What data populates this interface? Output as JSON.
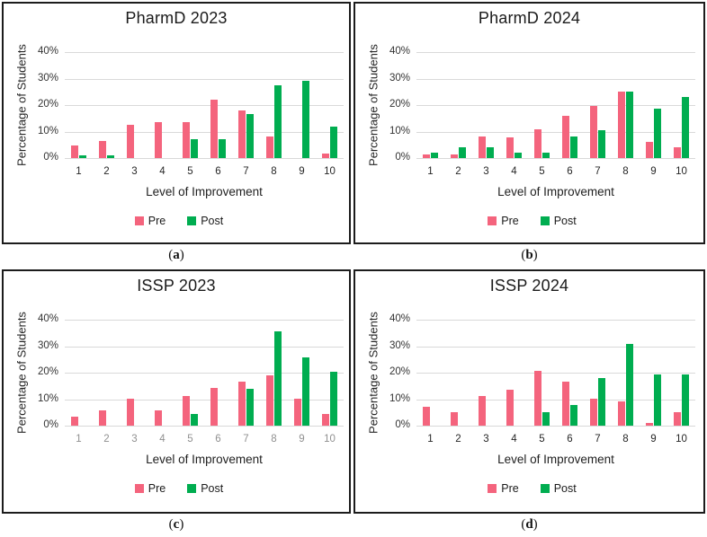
{
  "colors": {
    "pre": "#F4647D",
    "post": "#00AD50",
    "gridline": "#D9D9D9",
    "text_dark": "#262626",
    "xtick_gray": "#909090",
    "box_border": "#1C1C1C"
  },
  "figure": {
    "captions": [
      {
        "open": "(",
        "letter": "a",
        "close": ")"
      },
      {
        "open": "(",
        "letter": "b",
        "close": ")"
      },
      {
        "open": "(",
        "letter": "c",
        "close": ")"
      },
      {
        "open": "(",
        "letter": "d",
        "close": ")"
      }
    ]
  },
  "chart_data": [
    {
      "type": "bar",
      "panel": "a",
      "title": "PharmD 2023",
      "xlabel": "Level of Improvement",
      "ylabel": "Percentage of Students",
      "categories": [
        "1",
        "2",
        "3",
        "4",
        "5",
        "6",
        "7",
        "8",
        "9",
        "10"
      ],
      "series": [
        {
          "name": "Pre",
          "color": "#F4647D",
          "values": [
            4.8,
            6.5,
            12.7,
            13.5,
            13.5,
            22.0,
            18.1,
            8.0,
            0,
            1.7
          ]
        },
        {
          "name": "Post",
          "color": "#00AD50",
          "values": [
            0.9,
            0.9,
            0,
            0,
            7.1,
            7.1,
            16.5,
            27.4,
            29.0,
            11.8
          ]
        }
      ],
      "ylim": [
        0,
        40
      ],
      "yticks": [
        "0%",
        "10%",
        "20%",
        "30%",
        "40%"
      ],
      "grid": true,
      "legend_position": "bottom",
      "xtick_color": "#262626"
    },
    {
      "type": "bar",
      "panel": "b",
      "title": "PharmD 2024",
      "xlabel": "Level of Improvement",
      "ylabel": "Percentage of Students",
      "categories": [
        "1",
        "2",
        "3",
        "4",
        "5",
        "6",
        "7",
        "8",
        "9",
        "10"
      ],
      "series": [
        {
          "name": "Pre",
          "color": "#F4647D",
          "values": [
            1.5,
            1.5,
            8.3,
            7.7,
            10.7,
            16.0,
            19.8,
            25.0,
            6.0,
            3.9
          ]
        },
        {
          "name": "Post",
          "color": "#00AD50",
          "values": [
            2.1,
            4.2,
            4.2,
            2.1,
            2.1,
            8.3,
            10.4,
            25.0,
            18.8,
            22.9
          ]
        }
      ],
      "ylim": [
        0,
        40
      ],
      "yticks": [
        "0%",
        "10%",
        "20%",
        "30%",
        "40%"
      ],
      "grid": true,
      "legend_position": "bottom",
      "xtick_color": "#262626"
    },
    {
      "type": "bar",
      "panel": "c",
      "title": "ISSP 2023",
      "xlabel": "Level of Improvement",
      "ylabel": "Percentage of Students",
      "categories": [
        "1",
        "2",
        "3",
        "4",
        "5",
        "6",
        "7",
        "8",
        "9",
        "10"
      ],
      "series": [
        {
          "name": "Pre",
          "color": "#F4647D",
          "values": [
            3.3,
            5.6,
            10.0,
            5.6,
            11.1,
            14.4,
            16.7,
            18.9,
            10.0,
            4.4
          ]
        },
        {
          "name": "Post",
          "color": "#00AD50",
          "values": [
            0,
            0,
            0,
            0,
            4.4,
            0,
            14.0,
            35.6,
            25.9,
            20.5
          ]
        }
      ],
      "ylim": [
        0,
        40
      ],
      "yticks": [
        "0%",
        "10%",
        "20%",
        "30%",
        "40%"
      ],
      "grid": true,
      "legend_position": "bottom",
      "xtick_color": "#909090"
    },
    {
      "type": "bar",
      "panel": "d",
      "title": "ISSP 2024",
      "xlabel": "Level of Improvement",
      "ylabel": "Percentage of Students",
      "categories": [
        "1",
        "2",
        "3",
        "4",
        "5",
        "6",
        "7",
        "8",
        "9",
        "10"
      ],
      "series": [
        {
          "name": "Pre",
          "color": "#F4647D",
          "values": [
            7.2,
            5.2,
            11.3,
            13.4,
            20.6,
            16.5,
            10.3,
            9.3,
            1.0,
            5.2
          ]
        },
        {
          "name": "Post",
          "color": "#00AD50",
          "values": [
            0,
            0,
            0,
            0,
            5.2,
            7.7,
            18.0,
            30.9,
            19.2,
            19.2
          ]
        }
      ],
      "ylim": [
        0,
        40
      ],
      "yticks": [
        "0%",
        "10%",
        "20%",
        "30%",
        "40%"
      ],
      "grid": true,
      "legend_position": "bottom",
      "xtick_color": "#262626"
    }
  ]
}
